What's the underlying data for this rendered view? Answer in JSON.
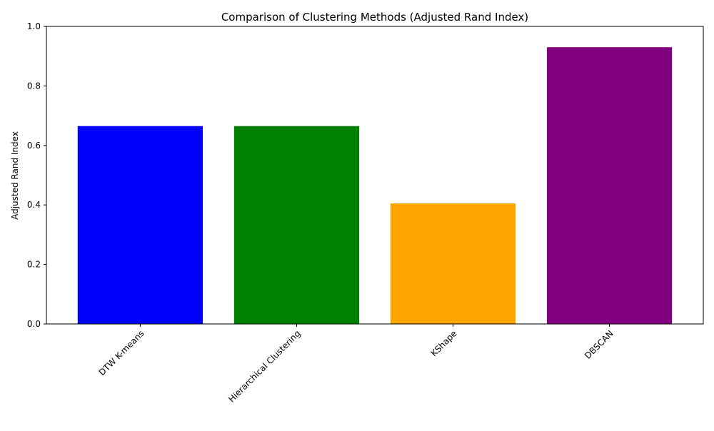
{
  "chart_data": {
    "type": "bar",
    "title": "Comparison of Clustering Methods (Adjusted Rand Index)",
    "xlabel": "",
    "ylabel": "Adjusted Rand Index",
    "categories": [
      "DTW K-means",
      "Hierarchical Clustering",
      "KShape",
      "DBSCAN"
    ],
    "values": [
      0.665,
      0.665,
      0.405,
      0.93
    ],
    "colors": [
      "#0000ff",
      "#008000",
      "#ffa500",
      "#800080"
    ],
    "ylim": [
      0,
      1.0
    ],
    "yticks": [
      "0.0",
      "0.2",
      "0.4",
      "0.6",
      "0.8",
      "1.0"
    ],
    "xtick_rotation": 45,
    "grid": false,
    "legend": "none"
  }
}
